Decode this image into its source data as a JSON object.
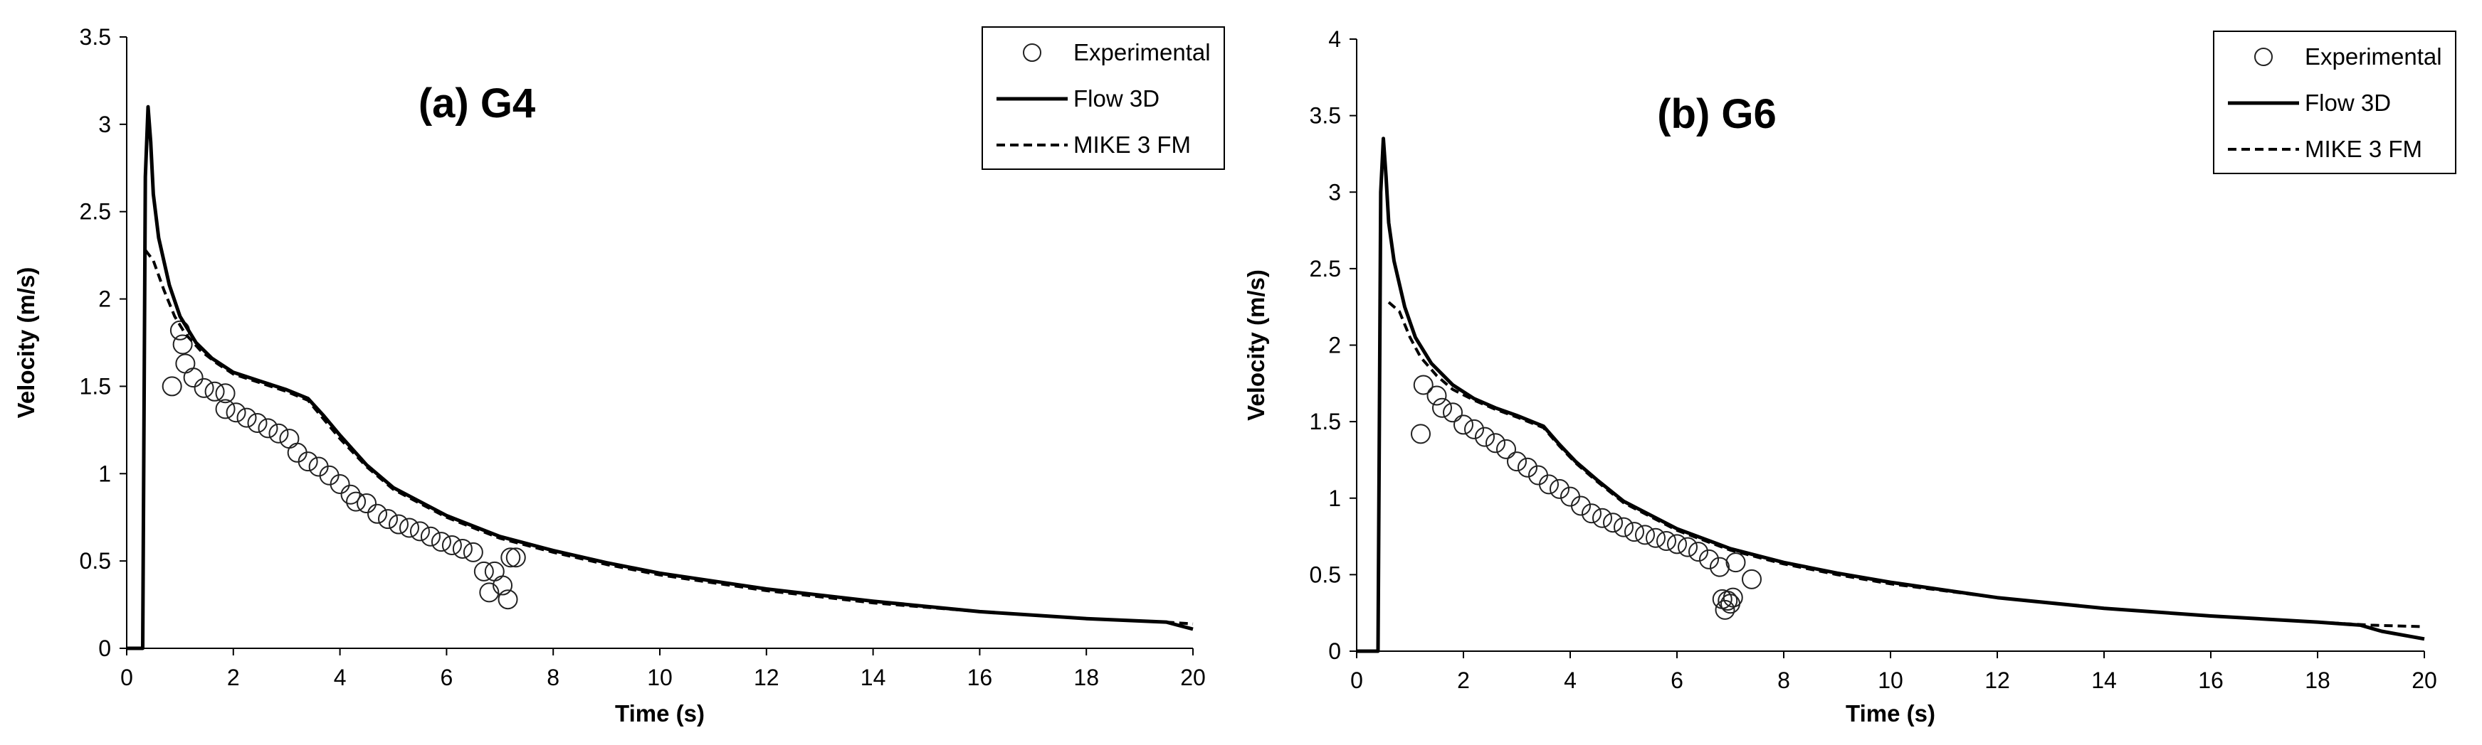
{
  "chart_data": [
    {
      "type": "scatter+line",
      "title": "(a) G4",
      "xlabel": "Time (s)",
      "ylabel": "Velocity (m/s)",
      "xlim": [
        0,
        20
      ],
      "ylim": [
        0,
        3.5
      ],
      "xticks": [
        0,
        2,
        4,
        6,
        8,
        10,
        12,
        14,
        16,
        18,
        20
      ],
      "yticks": [
        0,
        0.5,
        1,
        1.5,
        2,
        2.5,
        3,
        3.5
      ],
      "ytick_labels": [
        "0",
        "0.5",
        "1",
        "1.5",
        "2",
        "2.5",
        "3",
        "3.5"
      ],
      "legend": {
        "position": "top-right",
        "entries": [
          "Experimental",
          "Flow 3D",
          "MIKE 3 FM"
        ]
      },
      "series": [
        {
          "name": "Experimental",
          "style": "open-circle",
          "x": [
            0.85,
            1.0,
            1.05,
            1.1,
            1.25,
            1.45,
            1.65,
            1.85,
            1.85,
            2.05,
            2.25,
            2.45,
            2.65,
            2.85,
            3.05,
            3.2,
            3.4,
            3.6,
            3.8,
            4.0,
            4.2,
            4.3,
            4.5,
            4.7,
            4.9,
            5.1,
            5.3,
            5.5,
            5.7,
            5.9,
            6.1,
            6.3,
            6.5,
            6.7,
            6.8,
            6.9,
            7.05,
            7.15,
            7.2,
            7.3
          ],
          "y": [
            1.5,
            1.82,
            1.74,
            1.63,
            1.55,
            1.49,
            1.47,
            1.46,
            1.37,
            1.35,
            1.32,
            1.29,
            1.26,
            1.23,
            1.2,
            1.12,
            1.07,
            1.04,
            0.99,
            0.94,
            0.88,
            0.84,
            0.83,
            0.77,
            0.74,
            0.71,
            0.69,
            0.67,
            0.64,
            0.61,
            0.59,
            0.57,
            0.55,
            0.44,
            0.32,
            0.44,
            0.36,
            0.28,
            0.52,
            0.52
          ]
        },
        {
          "name": "Flow 3D",
          "style": "solid",
          "x": [
            0,
            0.3,
            0.35,
            0.4,
            0.45,
            0.5,
            0.6,
            0.8,
            1.0,
            1.3,
            1.6,
            2.0,
            2.5,
            3.0,
            3.4,
            3.7,
            4.0,
            4.5,
            5.0,
            6.0,
            7.0,
            8.0,
            9.0,
            10.0,
            12.0,
            14.0,
            16.0,
            18.0,
            19.5,
            20.0
          ],
          "y": [
            0,
            0,
            2.7,
            3.1,
            2.9,
            2.6,
            2.35,
            2.08,
            1.9,
            1.75,
            1.66,
            1.58,
            1.53,
            1.48,
            1.43,
            1.33,
            1.22,
            1.05,
            0.92,
            0.76,
            0.64,
            0.56,
            0.49,
            0.43,
            0.34,
            0.27,
            0.21,
            0.17,
            0.15,
            0.11
          ]
        },
        {
          "name": "MIKE 3 FM",
          "style": "dashed",
          "x": [
            0.35,
            0.5,
            0.7,
            0.9,
            1.1,
            1.4,
            1.7,
            2.0,
            2.5,
            3.0,
            3.4,
            3.7,
            4.0,
            4.5,
            5.0,
            6.0,
            7.0,
            8.0,
            9.0,
            10.0,
            12.0,
            14.0,
            16.0,
            18.0,
            19.5,
            20.0
          ],
          "y": [
            2.28,
            2.22,
            2.05,
            1.9,
            1.8,
            1.7,
            1.63,
            1.57,
            1.52,
            1.47,
            1.42,
            1.31,
            1.2,
            1.04,
            0.91,
            0.75,
            0.63,
            0.55,
            0.48,
            0.42,
            0.33,
            0.26,
            0.21,
            0.17,
            0.15,
            0.14
          ]
        }
      ]
    },
    {
      "type": "scatter+line",
      "title": "(b) G6",
      "xlabel": "Time (s)",
      "ylabel": "Velocity (m/s)",
      "xlim": [
        0,
        20
      ],
      "ylim": [
        0,
        4
      ],
      "xticks": [
        0,
        2,
        4,
        6,
        8,
        10,
        12,
        14,
        16,
        18,
        20
      ],
      "yticks": [
        0,
        0.5,
        1,
        1.5,
        2,
        2.5,
        3,
        3.5,
        4
      ],
      "ytick_labels": [
        "0",
        "0.5",
        "1",
        "1.5",
        "2",
        "2.5",
        "3",
        "3.5",
        "4"
      ],
      "legend": {
        "position": "top-right",
        "entries": [
          "Experimental",
          "Flow 3D",
          "MIKE 3 FM"
        ]
      },
      "series": [
        {
          "name": "Experimental",
          "style": "open-circle",
          "x": [
            1.2,
            1.25,
            1.5,
            1.6,
            1.8,
            2.0,
            2.2,
            2.4,
            2.6,
            2.8,
            3.0,
            3.2,
            3.4,
            3.6,
            3.8,
            4.0,
            4.2,
            4.4,
            4.6,
            4.8,
            5.0,
            5.2,
            5.4,
            5.6,
            5.8,
            6.0,
            6.2,
            6.4,
            6.6,
            6.8,
            6.85,
            6.9,
            6.95,
            7.0,
            7.05,
            7.1,
            7.4
          ],
          "y": [
            1.42,
            1.74,
            1.67,
            1.59,
            1.56,
            1.48,
            1.45,
            1.4,
            1.36,
            1.32,
            1.24,
            1.2,
            1.15,
            1.09,
            1.06,
            1.01,
            0.95,
            0.9,
            0.87,
            0.84,
            0.81,
            0.78,
            0.76,
            0.74,
            0.72,
            0.7,
            0.68,
            0.65,
            0.6,
            0.55,
            0.34,
            0.27,
            0.33,
            0.31,
            0.35,
            0.58,
            0.47
          ]
        },
        {
          "name": "Flow 3D",
          "style": "solid",
          "x": [
            0,
            0.4,
            0.45,
            0.5,
            0.55,
            0.6,
            0.7,
            0.9,
            1.1,
            1.4,
            1.8,
            2.2,
            2.6,
            3.0,
            3.5,
            3.8,
            4.1,
            4.5,
            5.0,
            6.0,
            7.0,
            8.0,
            9.0,
            10.0,
            12.0,
            14.0,
            16.0,
            18.0,
            18.8,
            19.2,
            20.0
          ],
          "y": [
            0,
            0,
            3.0,
            3.35,
            3.1,
            2.8,
            2.55,
            2.25,
            2.05,
            1.88,
            1.74,
            1.65,
            1.59,
            1.54,
            1.47,
            1.35,
            1.24,
            1.12,
            0.98,
            0.8,
            0.67,
            0.58,
            0.51,
            0.45,
            0.35,
            0.28,
            0.23,
            0.19,
            0.17,
            0.13,
            0.08
          ]
        },
        {
          "name": "MIKE 3 FM",
          "style": "dashed",
          "x": [
            0.6,
            0.8,
            1.0,
            1.2,
            1.5,
            1.8,
            2.2,
            2.6,
            3.0,
            3.5,
            3.8,
            4.1,
            4.5,
            5.0,
            6.0,
            7.0,
            8.0,
            9.0,
            10.0,
            12.0,
            14.0,
            16.0,
            18.0,
            19.0,
            20.0
          ],
          "y": [
            2.28,
            2.22,
            2.05,
            1.92,
            1.8,
            1.71,
            1.64,
            1.58,
            1.53,
            1.46,
            1.34,
            1.23,
            1.11,
            0.97,
            0.79,
            0.66,
            0.57,
            0.5,
            0.44,
            0.35,
            0.28,
            0.23,
            0.19,
            0.17,
            0.16
          ]
        }
      ]
    }
  ]
}
